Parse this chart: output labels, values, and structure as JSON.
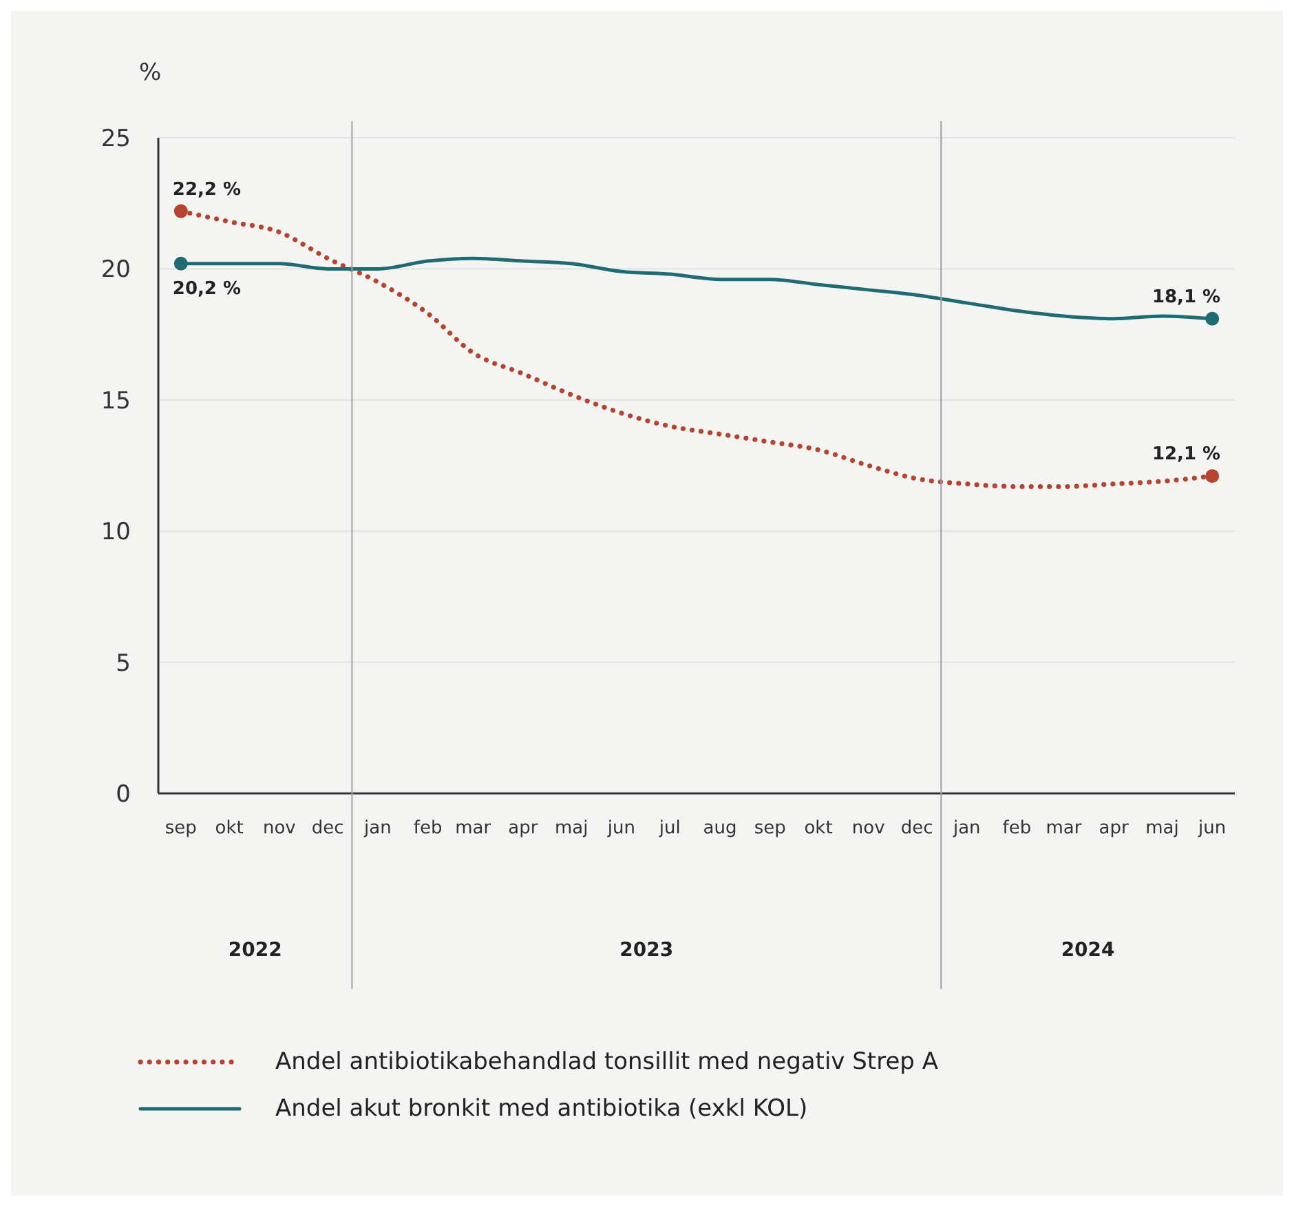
{
  "chart_data": {
    "type": "line",
    "ylabel": "%",
    "x": [
      "2022-09",
      "2022-10",
      "2022-11",
      "2022-12",
      "2023-01",
      "2023-02",
      "2023-03",
      "2023-04",
      "2023-05",
      "2023-06",
      "2023-07",
      "2023-08",
      "2023-09",
      "2023-10",
      "2023-11",
      "2023-12",
      "2024-01",
      "2024-02",
      "2024-03",
      "2024-04",
      "2024-05",
      "2024-06"
    ],
    "xlim": [
      "2022-08-18",
      "2024-06-15"
    ],
    "xticks": [
      {
        "value": "2022-09",
        "label": "sep"
      },
      {
        "value": "2022-10",
        "label": "okt"
      },
      {
        "value": "2022-11",
        "label": "nov"
      },
      {
        "value": "2022-12",
        "label": "dec"
      },
      {
        "value": "2023-01",
        "label": "jan"
      },
      {
        "value": "2023-02",
        "label": "feb"
      },
      {
        "value": "2023-03",
        "label": "mar"
      },
      {
        "value": "2023-04",
        "label": "apr"
      },
      {
        "value": "2023-05",
        "label": "maj"
      },
      {
        "value": "2023-06",
        "label": "jun"
      },
      {
        "value": "2023-07",
        "label": "jul"
      },
      {
        "value": "2023-08",
        "label": "aug"
      },
      {
        "value": "2023-09",
        "label": "sep"
      },
      {
        "value": "2023-10",
        "label": "okt"
      },
      {
        "value": "2023-11",
        "label": "nov"
      },
      {
        "value": "2023-12",
        "label": "dec"
      },
      {
        "value": "2024-01",
        "label": "jan"
      },
      {
        "value": "2024-02",
        "label": "feb"
      },
      {
        "value": "2024-03",
        "label": "mar"
      },
      {
        "value": "2024-04",
        "label": "apr"
      },
      {
        "value": "2024-05",
        "label": "maj"
      },
      {
        "value": "2024-06",
        "label": "jun"
      }
    ],
    "ylim": [
      0,
      25
    ],
    "yticks": [
      0,
      5,
      10,
      15,
      20,
      25
    ],
    "grid": "y",
    "legend": "bottom",
    "ref_lines": [
      {
        "axis": "x",
        "value": "2022-12-16",
        "color": "#a0a0a0"
      },
      {
        "axis": "x",
        "value": "2023-12-16",
        "color": "#a0a0a0"
      }
    ],
    "annotations": [
      "2022",
      "2023",
      "2024"
    ],
    "series": [
      {
        "name": "Andel antibiotikabehandlad tonsillit med negativ Strep A",
        "color": "#b5432f",
        "line_style": "dotted",
        "values": [
          22.2,
          21.8,
          21.4,
          20.4,
          19.5,
          18.3,
          16.8,
          16.0,
          15.2,
          14.5,
          14.0,
          13.7,
          13.4,
          13.1,
          12.5,
          12.0,
          11.8,
          11.7,
          11.7,
          11.8,
          11.9,
          12.1
        ],
        "value_labels": [
          "22,2 %",
          null,
          null,
          null,
          null,
          null,
          null,
          null,
          null,
          null,
          null,
          null,
          null,
          null,
          null,
          null,
          null,
          null,
          null,
          null,
          null,
          "12,1 %"
        ]
      },
      {
        "name": "Andel akut bronkit med antibiotika (exkl KOL)",
        "color": "#1f6b73",
        "line_style": "solid",
        "values": [
          20.2,
          20.2,
          20.2,
          20.0,
          20.0,
          20.3,
          20.4,
          20.3,
          20.2,
          19.9,
          19.8,
          19.6,
          19.6,
          19.4,
          19.2,
          19.0,
          18.7,
          18.4,
          18.2,
          18.1,
          18.2,
          18.1
        ],
        "value_labels": [
          "20,2 %",
          null,
          null,
          null,
          null,
          null,
          null,
          null,
          null,
          null,
          null,
          null,
          null,
          null,
          null,
          null,
          null,
          null,
          null,
          null,
          null,
          "18,1 %"
        ]
      }
    ]
  }
}
